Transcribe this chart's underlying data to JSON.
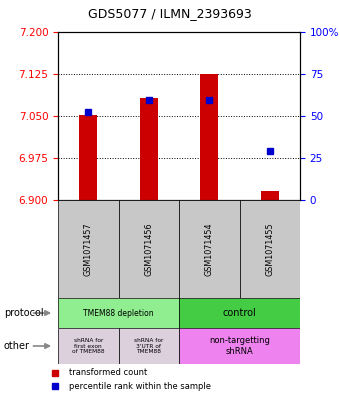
{
  "title": "GDS5077 / ILMN_2393693",
  "samples": [
    "GSM1071457",
    "GSM1071456",
    "GSM1071454",
    "GSM1071455"
  ],
  "red_values": [
    7.052,
    7.082,
    7.125,
    6.916
  ],
  "blue_values": [
    7.058,
    7.078,
    7.078,
    6.988
  ],
  "ylim_left": [
    6.9,
    7.2
  ],
  "ylim_right": [
    0,
    100
  ],
  "left_ticks": [
    6.9,
    6.975,
    7.05,
    7.125,
    7.2
  ],
  "right_ticks": [
    0,
    25,
    50,
    75,
    100
  ],
  "right_tick_labels": [
    "0",
    "25",
    "50",
    "75",
    "100%"
  ],
  "hlines": [
    6.975,
    7.05,
    7.125
  ],
  "bar_bottom": 6.9,
  "bar_color": "#CC0000",
  "blue_color": "#0000CC",
  "axis_bg": "#C8C8C8",
  "prot_left_color": "#90EE90",
  "prot_right_color": "#44CC44",
  "other_left_color": "#DDD0DD",
  "other_right_color": "#EE82EE",
  "legend_red_label": "transformed count",
  "legend_blue_label": "percentile rank within the sample",
  "bar_width": 0.3
}
